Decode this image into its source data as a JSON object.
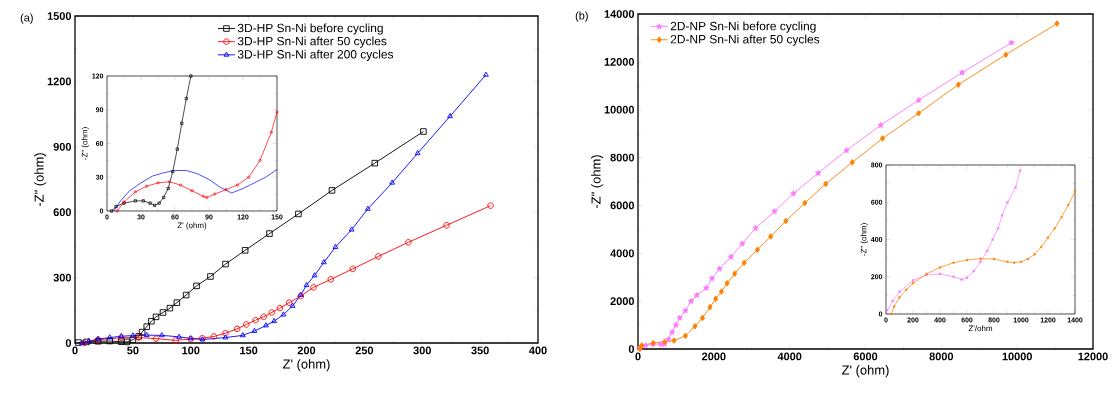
{
  "chart_data": [
    {
      "type": "line",
      "annotations": [
        "(a)"
      ],
      "xlabel": "Z' (ohm)",
      "ylabel": "-Z\" (ohm)",
      "xlim": [
        0,
        400
      ],
      "ylim": [
        0,
        1500
      ],
      "xticks": [
        0,
        50,
        100,
        150,
        200,
        250,
        300,
        350,
        400
      ],
      "yticks": [
        0,
        300,
        600,
        900,
        1200,
        1500
      ],
      "legend": "top",
      "series": [
        {
          "name": "3D-HP Sn-Ni before cycling",
          "color": "#000000",
          "marker": "square",
          "x": [
            3,
            10,
            20,
            30,
            40,
            45,
            50,
            55,
            58,
            62,
            66,
            70,
            76,
            82,
            88,
            96,
            105,
            117,
            130,
            147,
            168,
            193,
            222,
            259,
            301
          ],
          "values": [
            2,
            5,
            8,
            9,
            6,
            5,
            15,
            30,
            50,
            75,
            100,
            120,
            140,
            160,
            185,
            220,
            262,
            305,
            362,
            425,
            502,
            592,
            700,
            825,
            970
          ]
        },
        {
          "name": "3D-HP Sn-Ni after 50 cycles",
          "color": "#ff0000",
          "marker": "circle",
          "x": [
            8,
            20,
            40,
            55,
            70,
            87,
            100,
            110,
            120,
            130,
            140,
            148,
            156,
            163,
            170,
            177,
            185,
            195,
            206,
            221,
            240,
            262,
            288,
            321,
            359
          ],
          "values": [
            0,
            15,
            24,
            25,
            20,
            12,
            18,
            22,
            30,
            45,
            65,
            85,
            105,
            120,
            140,
            160,
            185,
            215,
            255,
            292,
            340,
            397,
            462,
            540,
            630
          ]
        },
        {
          "name": "3D-HP Sn-Ni after 200 cycles",
          "color": "#0000ff",
          "marker": "triangle",
          "x": [
            6,
            12,
            20,
            30,
            40,
            50,
            62,
            75,
            90,
            100,
            110,
            130,
            145,
            155,
            165,
            172,
            180,
            188,
            195,
            200,
            207,
            215,
            225,
            239,
            253,
            274,
            296,
            324,
            355
          ],
          "values": [
            0,
            9,
            18,
            25,
            31,
            34,
            36,
            35,
            28,
            21,
            16,
            25,
            35,
            55,
            80,
            100,
            130,
            170,
            220,
            265,
            310,
            370,
            440,
            520,
            615,
            735,
            870,
            1040,
            1230
          ]
        }
      ]
    },
    {
      "type": "line",
      "xlabel": "Z' (ohm)",
      "ylabel": "-Z\" (ohm)",
      "xlim": [
        0,
        150
      ],
      "ylim": [
        0,
        120
      ],
      "xticks": [
        0,
        30,
        60,
        90,
        120,
        150
      ],
      "yticks": [
        0,
        30,
        60,
        90,
        120
      ],
      "series": [
        {
          "color": "#000000",
          "marker": "square",
          "x": [
            4,
            8,
            15,
            25,
            32,
            38,
            42,
            46,
            50,
            54,
            58,
            62,
            66,
            70,
            74
          ],
          "values": [
            0,
            4,
            7,
            9,
            9,
            7,
            5,
            7,
            12,
            20,
            35,
            55,
            78,
            100,
            120
          ]
        },
        {
          "color": "#ff0000",
          "marker": "circle",
          "x": [
            9,
            15,
            25,
            35,
            45,
            55,
            65,
            75,
            85,
            88,
            95,
            105,
            115,
            125,
            135,
            145,
            150
          ],
          "values": [
            0,
            8,
            17,
            22,
            25,
            26,
            23,
            18,
            13,
            12,
            15,
            19,
            23,
            30,
            45,
            70,
            88
          ]
        },
        {
          "color": "#0000ff",
          "marker": "none",
          "x": [
            6,
            12,
            20,
            30,
            40,
            50,
            60,
            70,
            80,
            90,
            100,
            110,
            120,
            130,
            140,
            150
          ],
          "values": [
            0,
            9,
            18,
            25,
            31,
            34,
            36,
            36,
            33,
            28,
            21,
            16,
            20,
            25,
            30,
            37
          ]
        }
      ]
    },
    {
      "type": "line",
      "annotations": [
        "(b)"
      ],
      "xlabel": "Z' (ohm)",
      "ylabel": "-Z\" (ohm)",
      "xlim": [
        0,
        12000
      ],
      "ylim": [
        0,
        14000
      ],
      "xticks": [
        0,
        2000,
        4000,
        6000,
        8000,
        10000,
        12000
      ],
      "yticks": [
        0,
        2000,
        4000,
        6000,
        8000,
        10000,
        12000,
        14000
      ],
      "legend": "top left",
      "series": [
        {
          "name": "2D-NP Sn-Ni before cycling",
          "color": "#ff77ff",
          "marker": "star",
          "x": [
            50,
            200,
            400,
            600,
            700,
            800,
            900,
            1000,
            1100,
            1250,
            1400,
            1550,
            1800,
            1950,
            2150,
            2450,
            2750,
            3100,
            3600,
            4100,
            4750,
            5500,
            6400,
            7400,
            8550,
            9850
          ],
          "values": [
            50,
            150,
            200,
            200,
            200,
            400,
            700,
            1000,
            1300,
            1600,
            2000,
            2250,
            2550,
            2950,
            3350,
            3850,
            4400,
            5050,
            5750,
            6500,
            7350,
            8300,
            9350,
            10400,
            11550,
            12800
          ]
        },
        {
          "name": "2D-NP Sn-Ni after 50 cycles",
          "color": "#ff8000",
          "marker": "diamond",
          "x": [
            50,
            100,
            400,
            700,
            950,
            1250,
            1500,
            1700,
            1900,
            2050,
            2200,
            2350,
            2550,
            2800,
            3150,
            3500,
            3900,
            4400,
            4950,
            5650,
            6450,
            7400,
            8450,
            9700,
            11050
          ],
          "values": [
            0,
            150,
            250,
            300,
            350,
            550,
            950,
            1300,
            1750,
            2100,
            2400,
            2750,
            3150,
            3600,
            4150,
            4700,
            5350,
            6100,
            6900,
            7800,
            8800,
            9850,
            11050,
            12300,
            13600
          ]
        }
      ]
    },
    {
      "type": "line",
      "xlabel": "Z'/ohm",
      "ylabel": "-Z\" (ohm)",
      "xlim": [
        0,
        1400
      ],
      "ylim": [
        0,
        800
      ],
      "xticks": [
        0,
        200,
        400,
        600,
        800,
        1000,
        1200,
        1400
      ],
      "yticks": [
        0,
        200,
        400,
        600,
        800
      ],
      "series": [
        {
          "color": "#ff77ff",
          "marker": "star",
          "x": [
            10,
            50,
            100,
            200,
            300,
            400,
            500,
            560,
            600,
            650,
            700,
            750,
            790,
            830,
            860,
            900,
            960,
            994
          ],
          "values": [
            20,
            70,
            120,
            180,
            210,
            215,
            200,
            185,
            195,
            230,
            280,
            340,
            400,
            460,
            530,
            600,
            680,
            770
          ]
        },
        {
          "color": "#ff8000",
          "marker": "diamond",
          "x": [
            40,
            60,
            100,
            150,
            200,
            300,
            400,
            500,
            600,
            700,
            800,
            900,
            950,
            1000,
            1050,
            1100,
            1150,
            1200,
            1250,
            1300,
            1350,
            1400
          ],
          "values": [
            0,
            40,
            90,
            130,
            165,
            215,
            250,
            275,
            290,
            297,
            295,
            280,
            275,
            280,
            295,
            320,
            360,
            410,
            460,
            520,
            585,
            660
          ]
        }
      ]
    }
  ]
}
